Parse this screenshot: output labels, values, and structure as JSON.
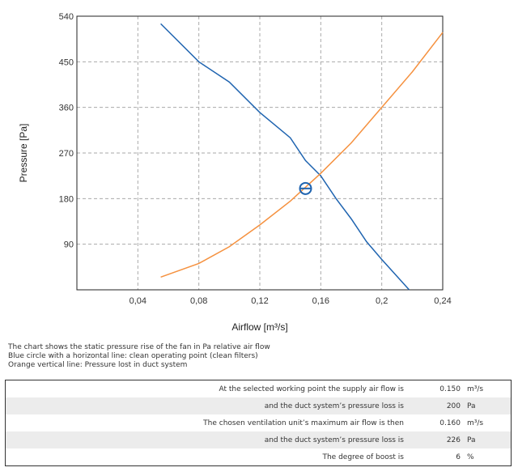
{
  "chart_data": {
    "type": "line",
    "xlabel": "Airflow [m³/s]",
    "ylabel": "Pressure [Pa]",
    "xlim": [
      0,
      0.24
    ],
    "ylim": [
      0,
      540
    ],
    "x_ticks": [
      "0,04",
      "0,08",
      "0,12",
      "0,16",
      "0,2",
      "0,24"
    ],
    "x_tick_values": [
      0.04,
      0.08,
      0.12,
      0.16,
      0.2,
      0.24
    ],
    "y_ticks": [
      "90",
      "180",
      "270",
      "360",
      "450",
      "540"
    ],
    "y_tick_values": [
      90,
      180,
      270,
      360,
      450,
      540
    ],
    "grid": true,
    "series": [
      {
        "color": "#1f64b0",
        "points": [
          [
            0.055,
            525
          ],
          [
            0.08,
            450
          ],
          [
            0.1,
            410
          ],
          [
            0.12,
            350
          ],
          [
            0.13,
            325
          ],
          [
            0.14,
            300
          ],
          [
            0.15,
            255
          ],
          [
            0.16,
            225
          ],
          [
            0.17,
            180
          ],
          [
            0.18,
            140
          ],
          [
            0.19,
            95
          ],
          [
            0.2,
            60
          ],
          [
            0.218,
            0
          ]
        ]
      },
      {
        "color": "#f5913f",
        "points": [
          [
            0.055,
            25
          ],
          [
            0.08,
            52
          ],
          [
            0.1,
            85
          ],
          [
            0.12,
            128
          ],
          [
            0.14,
            175
          ],
          [
            0.16,
            230
          ],
          [
            0.18,
            290
          ],
          [
            0.2,
            360
          ],
          [
            0.22,
            430
          ],
          [
            0.24,
            508
          ]
        ]
      }
    ],
    "working_point": {
      "x": 0.15,
      "y": 200,
      "color": "#1f64b0"
    }
  },
  "notes": [
    "The chart shows the static pressure rise of the fan in Pa relative air flow",
    "Blue circle with a horizontal line: clean operating point (clean filters)",
    "Orange vertical line: Pressure lost in duct system"
  ],
  "results": [
    {
      "text": "At the selected working point the supply air flow is",
      "value": "0.150",
      "unit": "m³/s"
    },
    {
      "text": "and the duct system’s pressure loss is",
      "value": "200",
      "unit": "Pa"
    },
    {
      "text": "The chosen ventilation unit’s maximum air flow is then",
      "value": "0.160",
      "unit": "m³/s"
    },
    {
      "text": "and the duct system’s pressure loss is",
      "value": "226",
      "unit": "Pa"
    },
    {
      "text": "The degree of boost is",
      "value": "6",
      "unit": "%"
    }
  ]
}
